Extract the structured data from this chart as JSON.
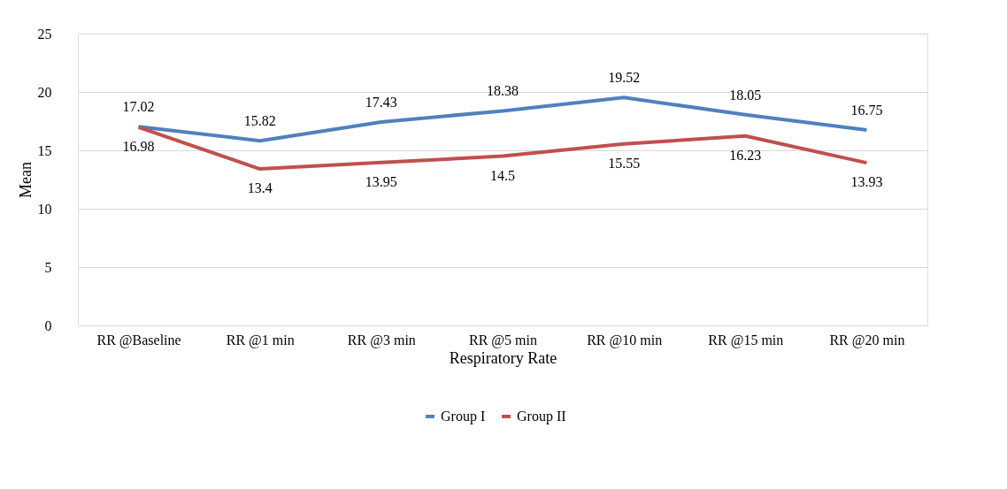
{
  "chart_data": {
    "type": "line",
    "xlabel": "Respiratory Rate",
    "ylabel": "Mean",
    "categories": [
      "RR @Baseline",
      "RR @1 min",
      "RR @3 min",
      "RR @5 min",
      "RR @10 min",
      "RR @15 min",
      "RR @20 min"
    ],
    "series": [
      {
        "name": "Group I",
        "color": "#4f81bd",
        "values": [
          17.02,
          15.82,
          17.43,
          18.38,
          19.52,
          18.05,
          16.75
        ]
      },
      {
        "name": "Group II",
        "color": "#c0504d",
        "values": [
          16.98,
          13.4,
          13.95,
          14.5,
          15.55,
          16.23,
          13.93
        ]
      }
    ],
    "ylim": [
      0,
      25
    ],
    "yticks": [
      0,
      5,
      10,
      15,
      20,
      25
    ],
    "grid": "y",
    "legend": "bottom",
    "data_labels": true,
    "marker": "none",
    "line_style": "solid"
  }
}
